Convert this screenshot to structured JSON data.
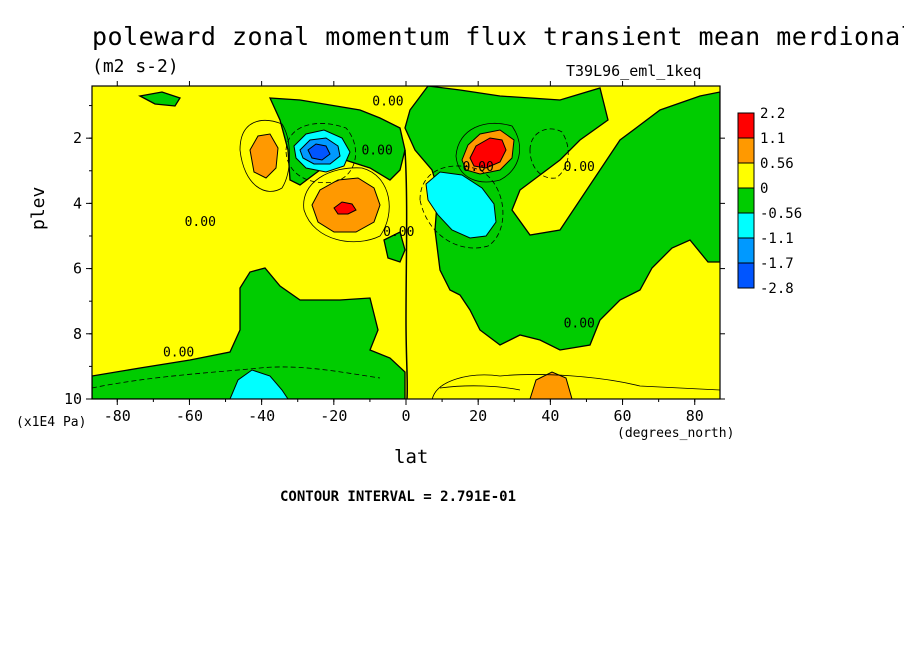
{
  "chart_data": {
    "type": "heatmap",
    "title": "poleward zonal momentum flux transient mean merdional",
    "units": "(m2 s-2)",
    "run_id": "T39L96_eml_1keq",
    "xlabel": "lat",
    "x_unit": "(degrees_north)",
    "ylabel": "plev",
    "y_unit": "(x1E4 Pa)",
    "footer": "CONTOUR INTERVAL = 2.791E-01",
    "xlim": [
      -87,
      87
    ],
    "ylim": [
      10,
      0.4
    ],
    "x_ticks": [
      -80,
      -60,
      -40,
      -20,
      0,
      20,
      40,
      60,
      80
    ],
    "x_tick_labels": [
      "-80",
      "-60",
      "-40",
      "-20",
      "0",
      "20",
      "40",
      "60",
      "80"
    ],
    "y_ticks": [
      2,
      4,
      6,
      8,
      10
    ],
    "y_tick_labels": [
      "2",
      "4",
      "6",
      "8",
      "10"
    ],
    "legend": {
      "placement": "right",
      "labels": [
        "2.2",
        "1.1",
        "0.56",
        "0",
        "-0.56",
        "-1.1",
        "-1.7",
        "-2.8"
      ],
      "colors": [
        "#ff0000",
        "#ff9900",
        "#ffff00",
        "#00cc00",
        "#00ffff",
        "#0099ff",
        "#0055ff"
      ]
    },
    "contour_labels": [
      {
        "text": "0.00",
        "lat": -5,
        "plev": 1.0
      },
      {
        "text": "0.00",
        "lat": -8,
        "plev": 2.5
      },
      {
        "text": "0.00",
        "lat": 20,
        "plev": 3.0
      },
      {
        "text": "0.00",
        "lat": 48,
        "plev": 3.0
      },
      {
        "text": "0.00",
        "lat": -57,
        "plev": 4.7
      },
      {
        "text": "0.00",
        "lat": -2,
        "plev": 5.0
      },
      {
        "text": "0.00",
        "lat": 48,
        "plev": 7.8
      },
      {
        "text": "0.00",
        "lat": -63,
        "plev": 8.7
      }
    ],
    "features": [
      {
        "kind": "max",
        "lat": 25,
        "plev": 2.2,
        "value": 2.2
      },
      {
        "kind": "max",
        "lat": -18,
        "plev": 4.0,
        "value": 1.1
      },
      {
        "kind": "max",
        "lat": -40,
        "plev": 2.4,
        "value": 0.56
      },
      {
        "kind": "max",
        "lat": 48,
        "plev": 9.6,
        "value": 0.56
      },
      {
        "kind": "min",
        "lat": -25,
        "plev": 2.2,
        "value": -1.7
      },
      {
        "kind": "min",
        "lat": 18,
        "plev": 3.9,
        "value": -0.56
      },
      {
        "kind": "min",
        "lat": -42,
        "plev": 9.7,
        "value": -0.56
      }
    ]
  }
}
